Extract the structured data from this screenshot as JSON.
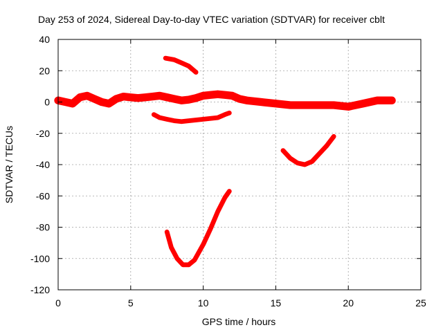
{
  "chart_data": {
    "type": "line",
    "title": "Day 253 of 2024, Sidereal Day-to-day VTEC variation (SDTVAR) for receiver cblt",
    "xlabel": "GPS time / hours",
    "ylabel": "SDTVAR / TECUs",
    "xlim": [
      0,
      25
    ],
    "ylim": [
      -120,
      40
    ],
    "xticks": [
      0,
      5,
      10,
      15,
      20,
      25
    ],
    "yticks": [
      -120,
      -100,
      -80,
      -60,
      -40,
      -20,
      0,
      20,
      40
    ],
    "grid": true,
    "color": "#ff0000",
    "series": [
      {
        "name": "main-band",
        "band": 5,
        "points": [
          [
            0,
            1
          ],
          [
            0.5,
            0
          ],
          [
            1,
            -1
          ],
          [
            1.5,
            3
          ],
          [
            2,
            4
          ],
          [
            2.5,
            2
          ],
          [
            3,
            0
          ],
          [
            3.5,
            -1
          ],
          [
            4,
            2
          ],
          [
            4.5,
            3.5
          ],
          [
            5,
            3
          ],
          [
            5.5,
            2.5
          ],
          [
            6,
            3
          ],
          [
            6.5,
            3.5
          ],
          [
            7,
            4
          ],
          [
            7.5,
            3
          ],
          [
            8,
            2
          ],
          [
            8.5,
            1
          ],
          [
            9,
            1.5
          ],
          [
            9.5,
            2.5
          ],
          [
            10,
            4
          ],
          [
            10.5,
            4.5
          ],
          [
            11,
            5
          ],
          [
            11.5,
            4.5
          ],
          [
            12,
            4
          ],
          [
            12.5,
            2
          ],
          [
            13,
            1
          ],
          [
            14,
            0
          ],
          [
            15,
            -1
          ],
          [
            16,
            -2
          ],
          [
            17,
            -2
          ],
          [
            18,
            -2
          ],
          [
            19,
            -2
          ],
          [
            20,
            -3
          ],
          [
            21,
            -1
          ],
          [
            22,
            1
          ],
          [
            23,
            1
          ]
        ]
      },
      {
        "name": "arc-1",
        "band": 3,
        "points": [
          [
            7.4,
            28
          ],
          [
            8,
            27
          ],
          [
            8.5,
            25
          ],
          [
            9,
            23
          ],
          [
            9.5,
            19
          ]
        ]
      },
      {
        "name": "arc-2",
        "band": 3,
        "points": [
          [
            6.6,
            -8
          ],
          [
            7,
            -10
          ],
          [
            7.5,
            -11
          ],
          [
            8,
            -12
          ],
          [
            8.5,
            -12.5
          ],
          [
            9,
            -12
          ],
          [
            9.5,
            -11.5
          ],
          [
            10,
            -11
          ],
          [
            10.5,
            -10.5
          ],
          [
            11,
            -10
          ],
          [
            11.5,
            -8
          ],
          [
            11.8,
            -7
          ]
        ]
      },
      {
        "name": "arc-3",
        "band": 3,
        "points": [
          [
            7.5,
            -83
          ],
          [
            7.8,
            -93
          ],
          [
            8.2,
            -100
          ],
          [
            8.6,
            -104
          ],
          [
            9,
            -104
          ],
          [
            9.4,
            -101
          ],
          [
            10,
            -91
          ],
          [
            10.5,
            -81
          ],
          [
            11,
            -70
          ],
          [
            11.5,
            -61
          ],
          [
            11.8,
            -57
          ]
        ]
      },
      {
        "name": "arc-4",
        "band": 3,
        "points": [
          [
            15.5,
            -31
          ],
          [
            16,
            -36
          ],
          [
            16.5,
            -39
          ],
          [
            17,
            -40
          ],
          [
            17.5,
            -38
          ],
          [
            18,
            -33
          ],
          [
            18.5,
            -28
          ],
          [
            19,
            -22
          ]
        ]
      }
    ]
  }
}
